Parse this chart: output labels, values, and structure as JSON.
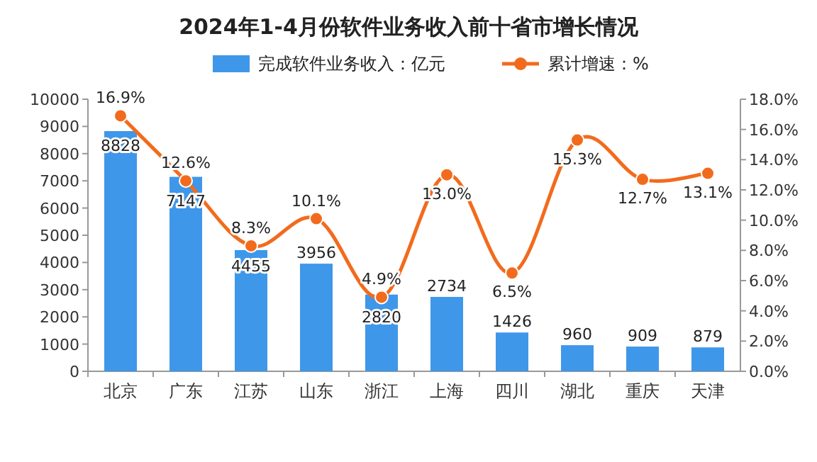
{
  "chart_data": {
    "type": "bar",
    "title": "2024年1-4月份软件业务收入前十省市增长情况",
    "categories": [
      "北京",
      "广东",
      "江苏",
      "山东",
      "浙江",
      "上海",
      "四川",
      "湖北",
      "重庆",
      "天津"
    ],
    "series": [
      {
        "name": "完成软件业务收入：亿元",
        "color": "#3f97ea",
        "values": [
          8828,
          7147,
          4455,
          3956,
          2820,
          2734,
          1426,
          960,
          909,
          879
        ],
        "value_labels": [
          "8828",
          "7147",
          "4455",
          "3956",
          "2820",
          "2734",
          "1426",
          "960",
          "909",
          "879"
        ]
      },
      {
        "name": "累计增速：%",
        "type": "line",
        "axis": "y2",
        "color": "#f26b1d",
        "marker": "circle",
        "values": [
          16.9,
          12.6,
          8.3,
          10.1,
          4.9,
          13.0,
          6.5,
          15.3,
          12.7,
          13.1
        ],
        "value_labels": [
          "16.9%",
          "12.6%",
          "8.3%",
          "10.1%",
          "4.9%",
          "13.0%",
          "6.5%",
          "15.3%",
          "12.7%",
          "13.1%"
        ]
      }
    ],
    "ylim": [
      0,
      10000
    ],
    "yticks": [
      0,
      1000,
      2000,
      3000,
      4000,
      5000,
      6000,
      7000,
      8000,
      9000,
      10000
    ],
    "y2lim": [
      0,
      18
    ],
    "y2ticks": [
      {
        "value": 0,
        "label": "0.0%"
      },
      {
        "value": 2,
        "label": "2.0%"
      },
      {
        "value": 4,
        "label": "4.0%"
      },
      {
        "value": 6,
        "label": "6.0%"
      },
      {
        "value": 8,
        "label": "8.0%"
      },
      {
        "value": 10,
        "label": "10.0%"
      },
      {
        "value": 12,
        "label": "12.0%"
      },
      {
        "value": 14,
        "label": "14.0%"
      },
      {
        "value": 16,
        "label": "16.0%"
      },
      {
        "value": 18,
        "label": "18.0%"
      }
    ],
    "legend": "top"
  }
}
